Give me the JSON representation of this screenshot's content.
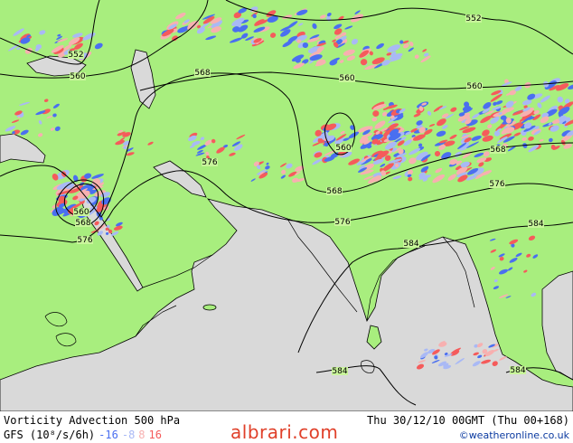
{
  "map": {
    "colors": {
      "land": "#a8ee7e",
      "sea": "#d9d9d9",
      "coast": "#000000",
      "contour": "#000000",
      "pos_strong": "#f55b5b",
      "pos_weak": "#f7b0b0",
      "neg_strong": "#4a6ff0",
      "neg_weak": "#a9b9f5"
    },
    "contour_labels": [
      {
        "id": "l552a",
        "text": "552"
      },
      {
        "id": "l552b",
        "text": "552"
      },
      {
        "id": "l560a",
        "text": "560"
      },
      {
        "id": "l560b",
        "text": "560"
      },
      {
        "id": "l560c",
        "text": "560"
      },
      {
        "id": "l560d",
        "text": "560"
      },
      {
        "id": "l560e",
        "text": "560"
      },
      {
        "id": "l568a",
        "text": "568"
      },
      {
        "id": "l568b",
        "text": "568"
      },
      {
        "id": "l568c",
        "text": "568"
      },
      {
        "id": "l568d",
        "text": "568"
      },
      {
        "id": "l576a",
        "text": "576"
      },
      {
        "id": "l576b",
        "text": "576"
      },
      {
        "id": "l576c",
        "text": "576"
      },
      {
        "id": "l576d",
        "text": "576"
      },
      {
        "id": "l584a",
        "text": "584"
      },
      {
        "id": "l584b",
        "text": "584"
      },
      {
        "id": "l584c",
        "text": "584"
      },
      {
        "id": "l584d",
        "text": "584"
      }
    ]
  },
  "footer": {
    "title": "Vorticity Advection 500 hPa",
    "datetime": "Thu 30/12/10 00GMT  (Thu 00+168)",
    "model_units": "GFS (10⁸/s/6h)",
    "legend": [
      {
        "text": "-16",
        "color": "#4a6ff0"
      },
      {
        "text": "-8",
        "color": "#a9b9f5"
      },
      {
        "text": "8",
        "color": "#f7b0b0"
      },
      {
        "text": "16",
        "color": "#f55b5b"
      }
    ],
    "copyright": "©weatheronline.co.uk",
    "watermark": "albrari.com"
  }
}
